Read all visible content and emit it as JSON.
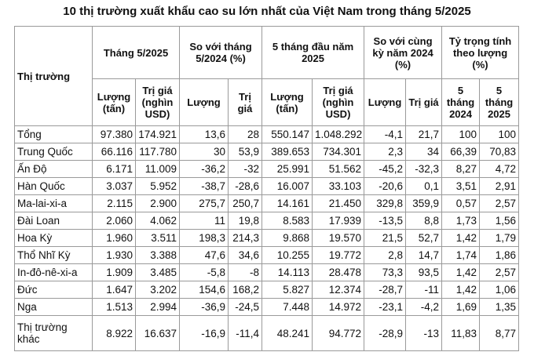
{
  "title": "10 thị trường xuất khẩu cao su lớn nhất của Việt Nam trong tháng 5/2025",
  "header": {
    "market": "Thị trường",
    "groups": [
      "Tháng 5/2025",
      "So với tháng 5/2024 (%)",
      "5 tháng đầu năm 2025",
      "So với cùng kỳ năm 2024 (%)",
      "Tỷ trọng tính theo lượng (%)"
    ],
    "subheaders": [
      "Lượng (tấn)",
      "Trị giá (nghìn USD)",
      "Lượng",
      "Trị giá",
      "Lượng (tấn)",
      "Trị giá (nghìn USD)",
      "Lượng",
      "Trị giá",
      "5 tháng 2024",
      "5 tháng 2025"
    ]
  },
  "table": {
    "rows": [
      [
        "Tổng",
        "97.380",
        "174.921",
        "13,6",
        "28",
        "550.147",
        "1.048.292",
        "-4,1",
        "21,7",
        "100",
        "100"
      ],
      [
        "Trung Quốc",
        "66.116",
        "117.780",
        "30",
        "53,9",
        "389.653",
        "734.301",
        "2,3",
        "34",
        "66,39",
        "70,83"
      ],
      [
        "Ấn Độ",
        "6.171",
        "11.009",
        "-36,2",
        "-32",
        "25.991",
        "51.562",
        "-45,2",
        "-32,3",
        "8,27",
        "4,72"
      ],
      [
        "Hàn Quốc",
        "3.037",
        "5.952",
        "-38,7",
        "-28,6",
        "16.007",
        "33.103",
        "-20,6",
        "0,1",
        "3,51",
        "2,91"
      ],
      [
        "Ma-lai-xi-a",
        "2.115",
        "2.900",
        "275,7",
        "250,7",
        "14.161",
        "21.450",
        "329,8",
        "359,9",
        "0,57",
        "2,57"
      ],
      [
        "Đài Loan",
        "2.060",
        "4.062",
        "11",
        "19,8",
        "8.583",
        "17.939",
        "-13,5",
        "8,8",
        "1,73",
        "1,56"
      ],
      [
        "Hoa Kỳ",
        "1.960",
        "3.511",
        "198,3",
        "214,3",
        "9.868",
        "19.570",
        "21,5",
        "52,7",
        "1,42",
        "1,79"
      ],
      [
        "Thổ Nhĩ Kỳ",
        "1.930",
        "3.388",
        "47,6",
        "34,6",
        "10.255",
        "19.772",
        "2,8",
        "14,7",
        "1,74",
        "1,86"
      ],
      [
        "In-đô-nê-xi-a",
        "1.909",
        "3.485",
        "-5,8",
        "-8",
        "14.113",
        "28.478",
        "73,3",
        "93,5",
        "1,42",
        "2,57"
      ],
      [
        "Đức",
        "1.647",
        "3.202",
        "154,6",
        "168,2",
        "5.827",
        "12.374",
        "-28,7",
        "-11",
        "1,42",
        "1,06"
      ],
      [
        "Nga",
        "1.513",
        "2.994",
        "-36,9",
        "-24,5",
        "7.448",
        "14.972",
        "-23,1",
        "-4,2",
        "1,69",
        "1,35"
      ],
      [
        "Thị trường khác",
        "8.922",
        "16.637",
        "-16,9",
        "-11,4",
        "48.241",
        "94.772",
        "-28,9",
        "-13",
        "11,83",
        "8,77"
      ]
    ]
  }
}
